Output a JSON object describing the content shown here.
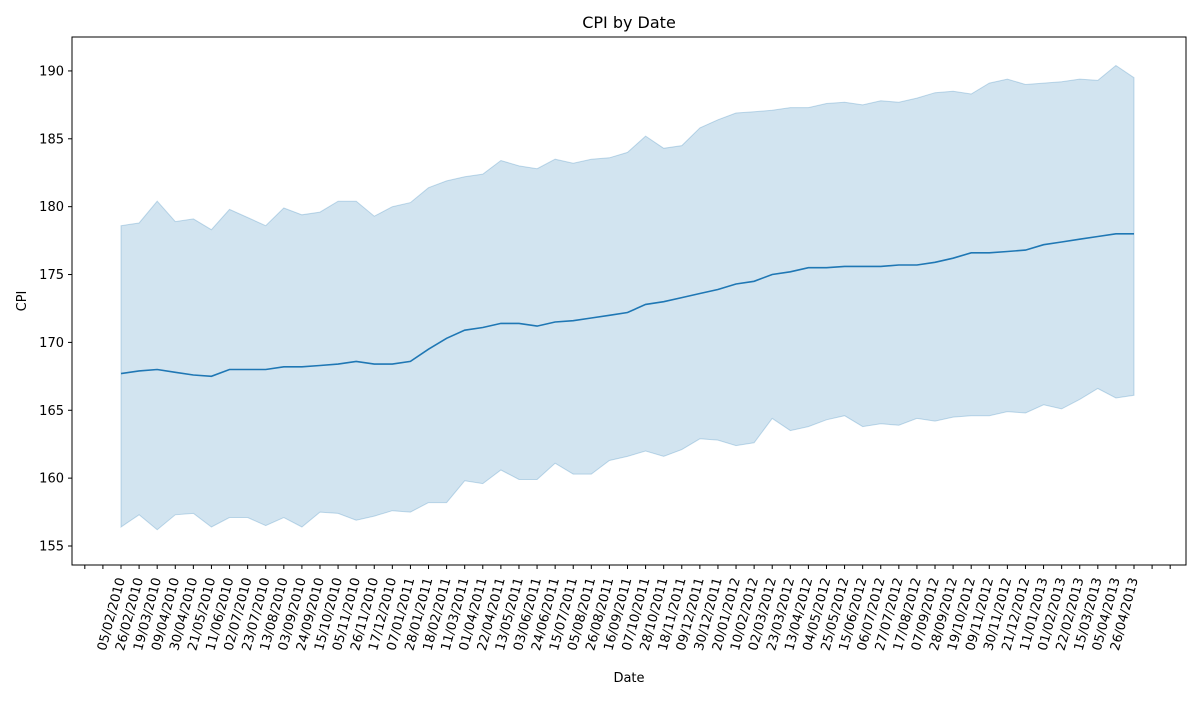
{
  "chart_data": {
    "type": "line",
    "title": "CPI by Date",
    "xlabel": "Date",
    "ylabel": "CPI",
    "ylim": [
      153.6,
      192.5
    ],
    "yticks": [
      155,
      160,
      165,
      170,
      175,
      180,
      185,
      190
    ],
    "grid": false,
    "line_color": "#1f77b4",
    "band_color": "#1f77b4",
    "x_tick_labels": [
      "05/02/2010",
      "26/02/2010",
      "19/03/2010",
      "09/04/2010",
      "30/04/2010",
      "21/05/2010",
      "11/06/2010",
      "02/07/2010",
      "23/07/2010",
      "13/08/2010",
      "03/09/2010",
      "24/09/2010",
      "15/10/2010",
      "05/11/2010",
      "26/11/2010",
      "17/12/2010",
      "07/01/2011",
      "28/01/2011",
      "18/02/2011",
      "11/03/2011",
      "01/04/2011",
      "22/04/2011",
      "13/05/2011",
      "03/06/2011",
      "24/06/2011",
      "15/07/2011",
      "05/08/2011",
      "26/08/2011",
      "16/09/2011",
      "07/10/2011",
      "28/10/2011",
      "18/11/2011",
      "09/12/2011",
      "30/12/2011",
      "20/01/2012",
      "10/02/2012",
      "02/03/2012",
      "23/03/2012",
      "13/04/2012",
      "04/05/2012",
      "25/05/2012",
      "15/06/2012",
      "06/07/2012",
      "27/07/2012",
      "17/08/2012",
      "07/09/2012",
      "28/09/2012",
      "19/10/2012",
      "09/11/2012",
      "30/11/2012",
      "21/12/2012",
      "11/01/2013",
      "01/02/2013",
      "22/02/2013",
      "15/03/2013",
      "05/04/2013",
      "26/04/2013"
    ],
    "series": [
      {
        "x": [
          "05/02/2010",
          "26/02/2010",
          "19/03/2010",
          "09/04/2010",
          "30/04/2010",
          "21/05/2010",
          "11/06/2010",
          "02/07/2010",
          "23/07/2010",
          "13/08/2010",
          "03/09/2010",
          "24/09/2010",
          "15/10/2010",
          "05/11/2010",
          "26/11/2010",
          "17/12/2010",
          "07/01/2011",
          "28/01/2011",
          "18/02/2011",
          "11/03/2011",
          "01/04/2011",
          "22/04/2011",
          "13/05/2011",
          "03/06/2011",
          "24/06/2011",
          "15/07/2011",
          "05/08/2011",
          "26/08/2011",
          "16/09/2011",
          "07/10/2011",
          "28/10/2011",
          "18/11/2011",
          "09/12/2011",
          "30/12/2011",
          "20/01/2012",
          "10/02/2012",
          "02/03/2012",
          "23/03/2012",
          "13/04/2012",
          "04/05/2012",
          "25/05/2012",
          "15/06/2012",
          "06/07/2012",
          "27/07/2012",
          "17/08/2012",
          "07/09/2012",
          "28/09/2012",
          "19/10/2012",
          "09/11/2012",
          "30/11/2012",
          "21/12/2012",
          "11/01/2013",
          "01/02/2013",
          "22/02/2013",
          "15/03/2013",
          "05/04/2013",
          "26/04/2013"
        ],
        "mean": [
          167.7,
          167.9,
          168.0,
          167.8,
          167.6,
          167.5,
          168.0,
          168.0,
          168.0,
          168.2,
          168.2,
          168.3,
          168.4,
          168.6,
          168.4,
          168.4,
          168.6,
          169.5,
          170.3,
          170.9,
          171.1,
          171.4,
          171.4,
          171.2,
          171.5,
          171.6,
          171.8,
          172.0,
          172.2,
          172.8,
          173.0,
          173.3,
          173.6,
          173.9,
          174.3,
          174.5,
          175.0,
          175.2,
          175.5,
          175.5,
          175.6,
          175.6,
          175.6,
          175.7,
          175.7,
          175.9,
          176.2,
          176.6,
          176.6,
          176.7,
          176.8,
          177.2,
          177.4,
          177.6,
          177.8,
          178.0,
          178.0
        ],
        "upper": [
          178.6,
          178.8,
          180.4,
          178.9,
          179.1,
          178.3,
          179.8,
          179.2,
          178.6,
          179.9,
          179.4,
          179.6,
          180.4,
          180.4,
          179.3,
          180.0,
          180.3,
          181.4,
          181.9,
          182.2,
          182.4,
          183.4,
          183.0,
          182.8,
          183.5,
          183.2,
          183.5,
          183.6,
          184.0,
          185.2,
          184.3,
          184.5,
          185.8,
          186.4,
          186.9,
          187.0,
          187.1,
          187.3,
          187.3,
          187.6,
          187.7,
          187.5,
          187.8,
          187.7,
          188.0,
          188.4,
          188.5,
          188.3,
          189.1,
          189.4,
          189.0,
          189.1,
          189.2,
          189.4,
          189.3,
          190.4,
          189.5
        ],
        "lower": [
          156.4,
          157.3,
          156.2,
          157.3,
          157.4,
          156.4,
          157.1,
          157.1,
          156.5,
          157.1,
          156.4,
          157.5,
          157.4,
          156.9,
          157.2,
          157.6,
          157.5,
          158.2,
          158.2,
          159.8,
          159.6,
          160.6,
          159.9,
          159.9,
          161.1,
          160.3,
          160.3,
          161.3,
          161.6,
          162.0,
          161.6,
          162.1,
          162.9,
          162.8,
          162.4,
          162.6,
          164.4,
          163.5,
          163.8,
          164.3,
          164.6,
          163.8,
          164.0,
          163.9,
          164.4,
          164.2,
          164.5,
          164.6,
          164.6,
          164.9,
          164.8,
          165.4,
          165.1,
          165.8,
          166.6,
          165.9,
          166.1
        ]
      }
    ]
  }
}
